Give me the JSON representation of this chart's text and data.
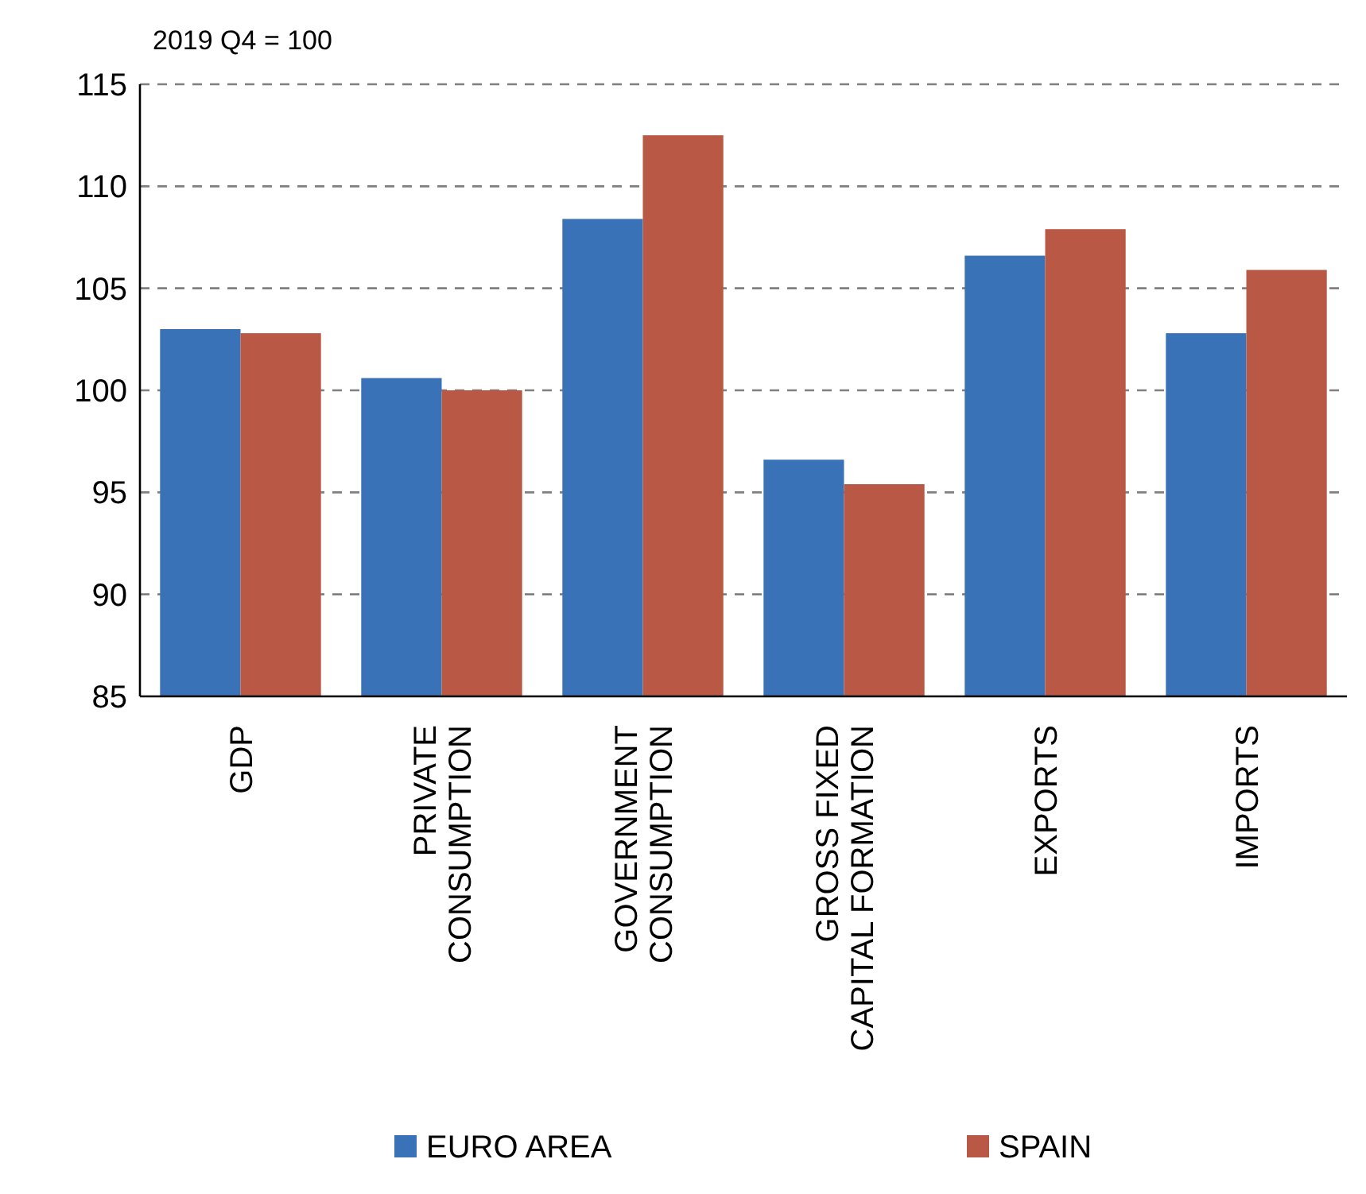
{
  "chart_data": {
    "type": "bar",
    "ylabel": "2019 Q4 = 100",
    "categories": [
      "GDP",
      "PRIVATE CONSUMPTION",
      "GOVERNMENT CONSUMPTION",
      "GROSS FIXED CAPITAL FORMATION",
      "EXPORTS",
      "IMPORTS"
    ],
    "series": [
      {
        "name": "EURO AREA",
        "color": "#3a72b8",
        "values": [
          103.0,
          100.6,
          108.4,
          96.6,
          106.6,
          102.8
        ]
      },
      {
        "name": "SPAIN",
        "color": "#b85845",
        "values": [
          102.8,
          100.0,
          112.5,
          95.4,
          107.9,
          105.9
        ]
      }
    ],
    "ylim": [
      85,
      115
    ],
    "yticks": [
      85,
      90,
      95,
      100,
      105,
      110,
      115
    ],
    "grid": "y",
    "legend": "bottom"
  }
}
